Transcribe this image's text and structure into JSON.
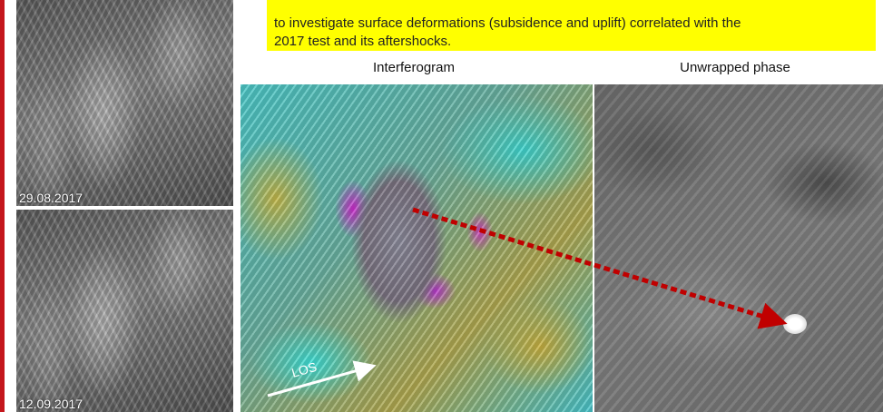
{
  "left_images": {
    "top_date": "29.08.2017",
    "bottom_date": "12.09.2017"
  },
  "note_lines": [
    "to investigate surface deformations (subsidence and uplift) correlated with the",
    "2017 test and its aftershocks."
  ],
  "captions": {
    "interferogram": "Interferogram",
    "unwrapped": "Unwrapped phase"
  },
  "los_label": "LOS",
  "colors": {
    "note_background": "#ffff00",
    "arrow": "#c00000",
    "accent_bar": "#c4161c"
  }
}
